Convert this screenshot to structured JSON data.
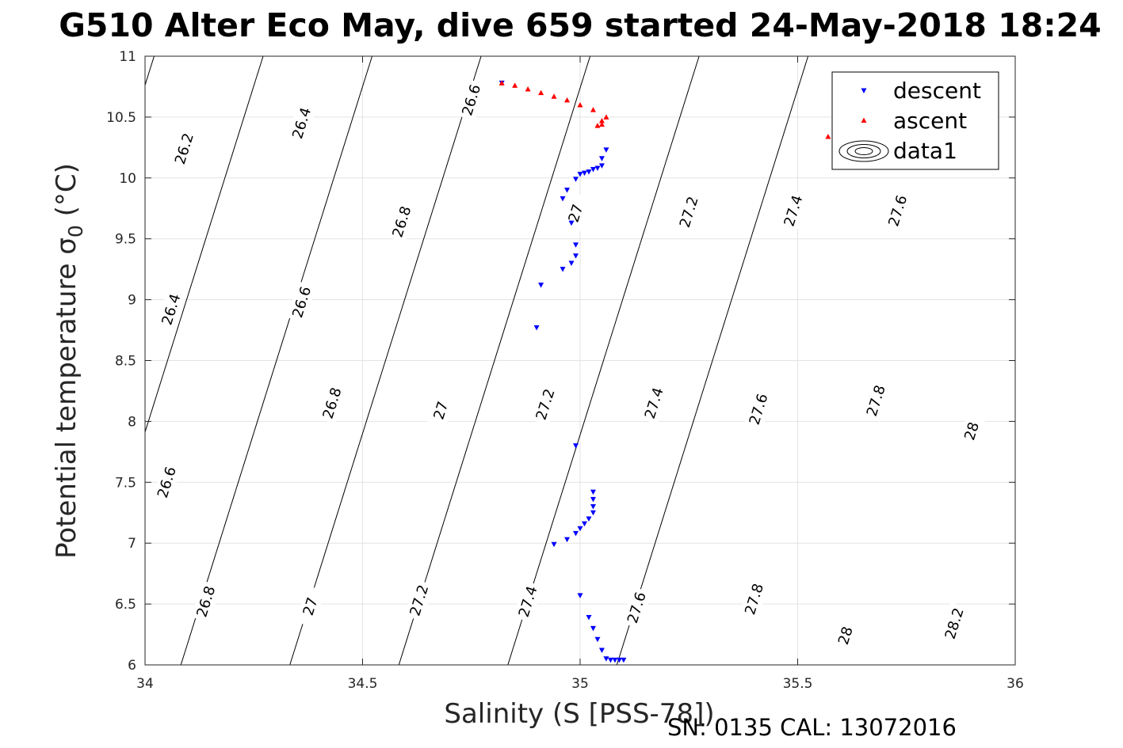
{
  "chart_data": {
    "type": "scatter",
    "title": "G510 Alter Eco May, dive 659 started 24-May-2018 18:24",
    "xlabel": "Salinity (S [PSS-78])",
    "ylabel": "Potential temperature σ",
    "ylabel_sub": "0",
    "ylabel_unit": " (°C)",
    "footer": "SN: 0135  CAL: 13072016",
    "xlim": [
      34,
      36
    ],
    "ylim": [
      6,
      11
    ],
    "xticks": [
      34,
      34.5,
      35,
      35.5,
      36
    ],
    "xtick_labels": [
      "34",
      "34.5",
      "35",
      "35.5",
      "36"
    ],
    "yticks": [
      6,
      6.5,
      7,
      7.5,
      8,
      8.5,
      9,
      9.5,
      10,
      10.5,
      11
    ],
    "ytick_labels": [
      "6",
      "6.5",
      "7",
      "7.5",
      "8",
      "8.5",
      "9",
      "9.5",
      "10",
      "10.5",
      "11"
    ],
    "grid": true,
    "legend_position": "top-right",
    "legend": [
      "descent",
      "ascent",
      "data1"
    ],
    "contour_levels": [
      "26.2",
      "26.4",
      "26.6",
      "26.8",
      "27",
      "27.2",
      "27.4",
      "27.6",
      "27.8",
      "28",
      "28.2"
    ],
    "contour_labels": [
      {
        "text": "26.2",
        "x": 34.09,
        "y": 10.24
      },
      {
        "text": "26.4",
        "x": 34.36,
        "y": 10.45
      },
      {
        "text": "26.6",
        "x": 34.75,
        "y": 10.64
      },
      {
        "text": "26.8",
        "x": 34.59,
        "y": 9.64
      },
      {
        "text": "27",
        "x": 34.99,
        "y": 9.71
      },
      {
        "text": "27.2",
        "x": 35.25,
        "y": 9.72
      },
      {
        "text": "27.4",
        "x": 35.49,
        "y": 9.73
      },
      {
        "text": "27.6",
        "x": 35.73,
        "y": 9.73
      },
      {
        "text": "26.4",
        "x": 34.06,
        "y": 8.92
      },
      {
        "text": "26.6",
        "x": 34.36,
        "y": 8.98
      },
      {
        "text": "26.8",
        "x": 34.43,
        "y": 8.15
      },
      {
        "text": "27",
        "x": 34.68,
        "y": 8.09
      },
      {
        "text": "27.2",
        "x": 34.92,
        "y": 8.14
      },
      {
        "text": "27.4",
        "x": 35.17,
        "y": 8.15
      },
      {
        "text": "27.6",
        "x": 35.41,
        "y": 8.1
      },
      {
        "text": "27.8",
        "x": 35.68,
        "y": 8.17
      },
      {
        "text": "28",
        "x": 35.9,
        "y": 7.92
      },
      {
        "text": "26.6",
        "x": 34.05,
        "y": 7.5
      },
      {
        "text": "26.8",
        "x": 34.14,
        "y": 6.52
      },
      {
        "text": "27",
        "x": 34.38,
        "y": 6.48
      },
      {
        "text": "27.2",
        "x": 34.63,
        "y": 6.53
      },
      {
        "text": "27.4",
        "x": 34.88,
        "y": 6.52
      },
      {
        "text": "27.6",
        "x": 35.13,
        "y": 6.47
      },
      {
        "text": "27.8",
        "x": 35.4,
        "y": 6.54
      },
      {
        "text": "28",
        "x": 35.61,
        "y": 6.24
      },
      {
        "text": "28.2",
        "x": 35.86,
        "y": 6.34
      }
    ],
    "series": [
      {
        "name": "descent",
        "color": "#0000ff",
        "marker": "triangle-down",
        "points": [
          [
            34.82,
            10.78
          ],
          [
            35.06,
            10.23
          ],
          [
            35.05,
            10.16
          ],
          [
            35.05,
            10.1
          ],
          [
            35.04,
            10.08
          ],
          [
            35.03,
            10.07
          ],
          [
            35.02,
            10.05
          ],
          [
            35.01,
            10.04
          ],
          [
            35.0,
            10.03
          ],
          [
            34.99,
            9.99
          ],
          [
            34.97,
            9.9
          ],
          [
            34.96,
            9.83
          ],
          [
            34.98,
            9.63
          ],
          [
            34.99,
            9.45
          ],
          [
            34.99,
            9.36
          ],
          [
            34.98,
            9.3
          ],
          [
            34.96,
            9.25
          ],
          [
            34.91,
            9.12
          ],
          [
            34.9,
            8.77
          ],
          [
            34.99,
            7.8
          ],
          [
            35.03,
            7.42
          ],
          [
            35.03,
            7.36
          ],
          [
            35.03,
            7.3
          ],
          [
            35.03,
            7.25
          ],
          [
            35.02,
            7.2
          ],
          [
            35.01,
            7.16
          ],
          [
            35.0,
            7.12
          ],
          [
            34.99,
            7.08
          ],
          [
            34.97,
            7.03
          ],
          [
            34.94,
            6.99
          ],
          [
            35.0,
            6.57
          ],
          [
            35.02,
            6.39
          ],
          [
            35.03,
            6.3
          ],
          [
            35.04,
            6.21
          ],
          [
            35.05,
            6.12
          ],
          [
            35.06,
            6.05
          ],
          [
            35.07,
            6.04
          ],
          [
            35.08,
            6.04
          ],
          [
            35.09,
            6.04
          ],
          [
            35.1,
            6.04
          ]
        ]
      },
      {
        "name": "ascent",
        "color": "#ff0000",
        "marker": "triangle-up",
        "points": [
          [
            34.82,
            10.78
          ],
          [
            34.85,
            10.76
          ],
          [
            34.88,
            10.73
          ],
          [
            34.91,
            10.7
          ],
          [
            34.94,
            10.67
          ],
          [
            34.97,
            10.64
          ],
          [
            35.0,
            10.6
          ],
          [
            35.03,
            10.56
          ],
          [
            35.06,
            10.5
          ],
          [
            35.05,
            10.47
          ],
          [
            35.04,
            10.43
          ],
          [
            35.05,
            10.44
          ],
          [
            35.57,
            10.34
          ]
        ]
      }
    ]
  }
}
